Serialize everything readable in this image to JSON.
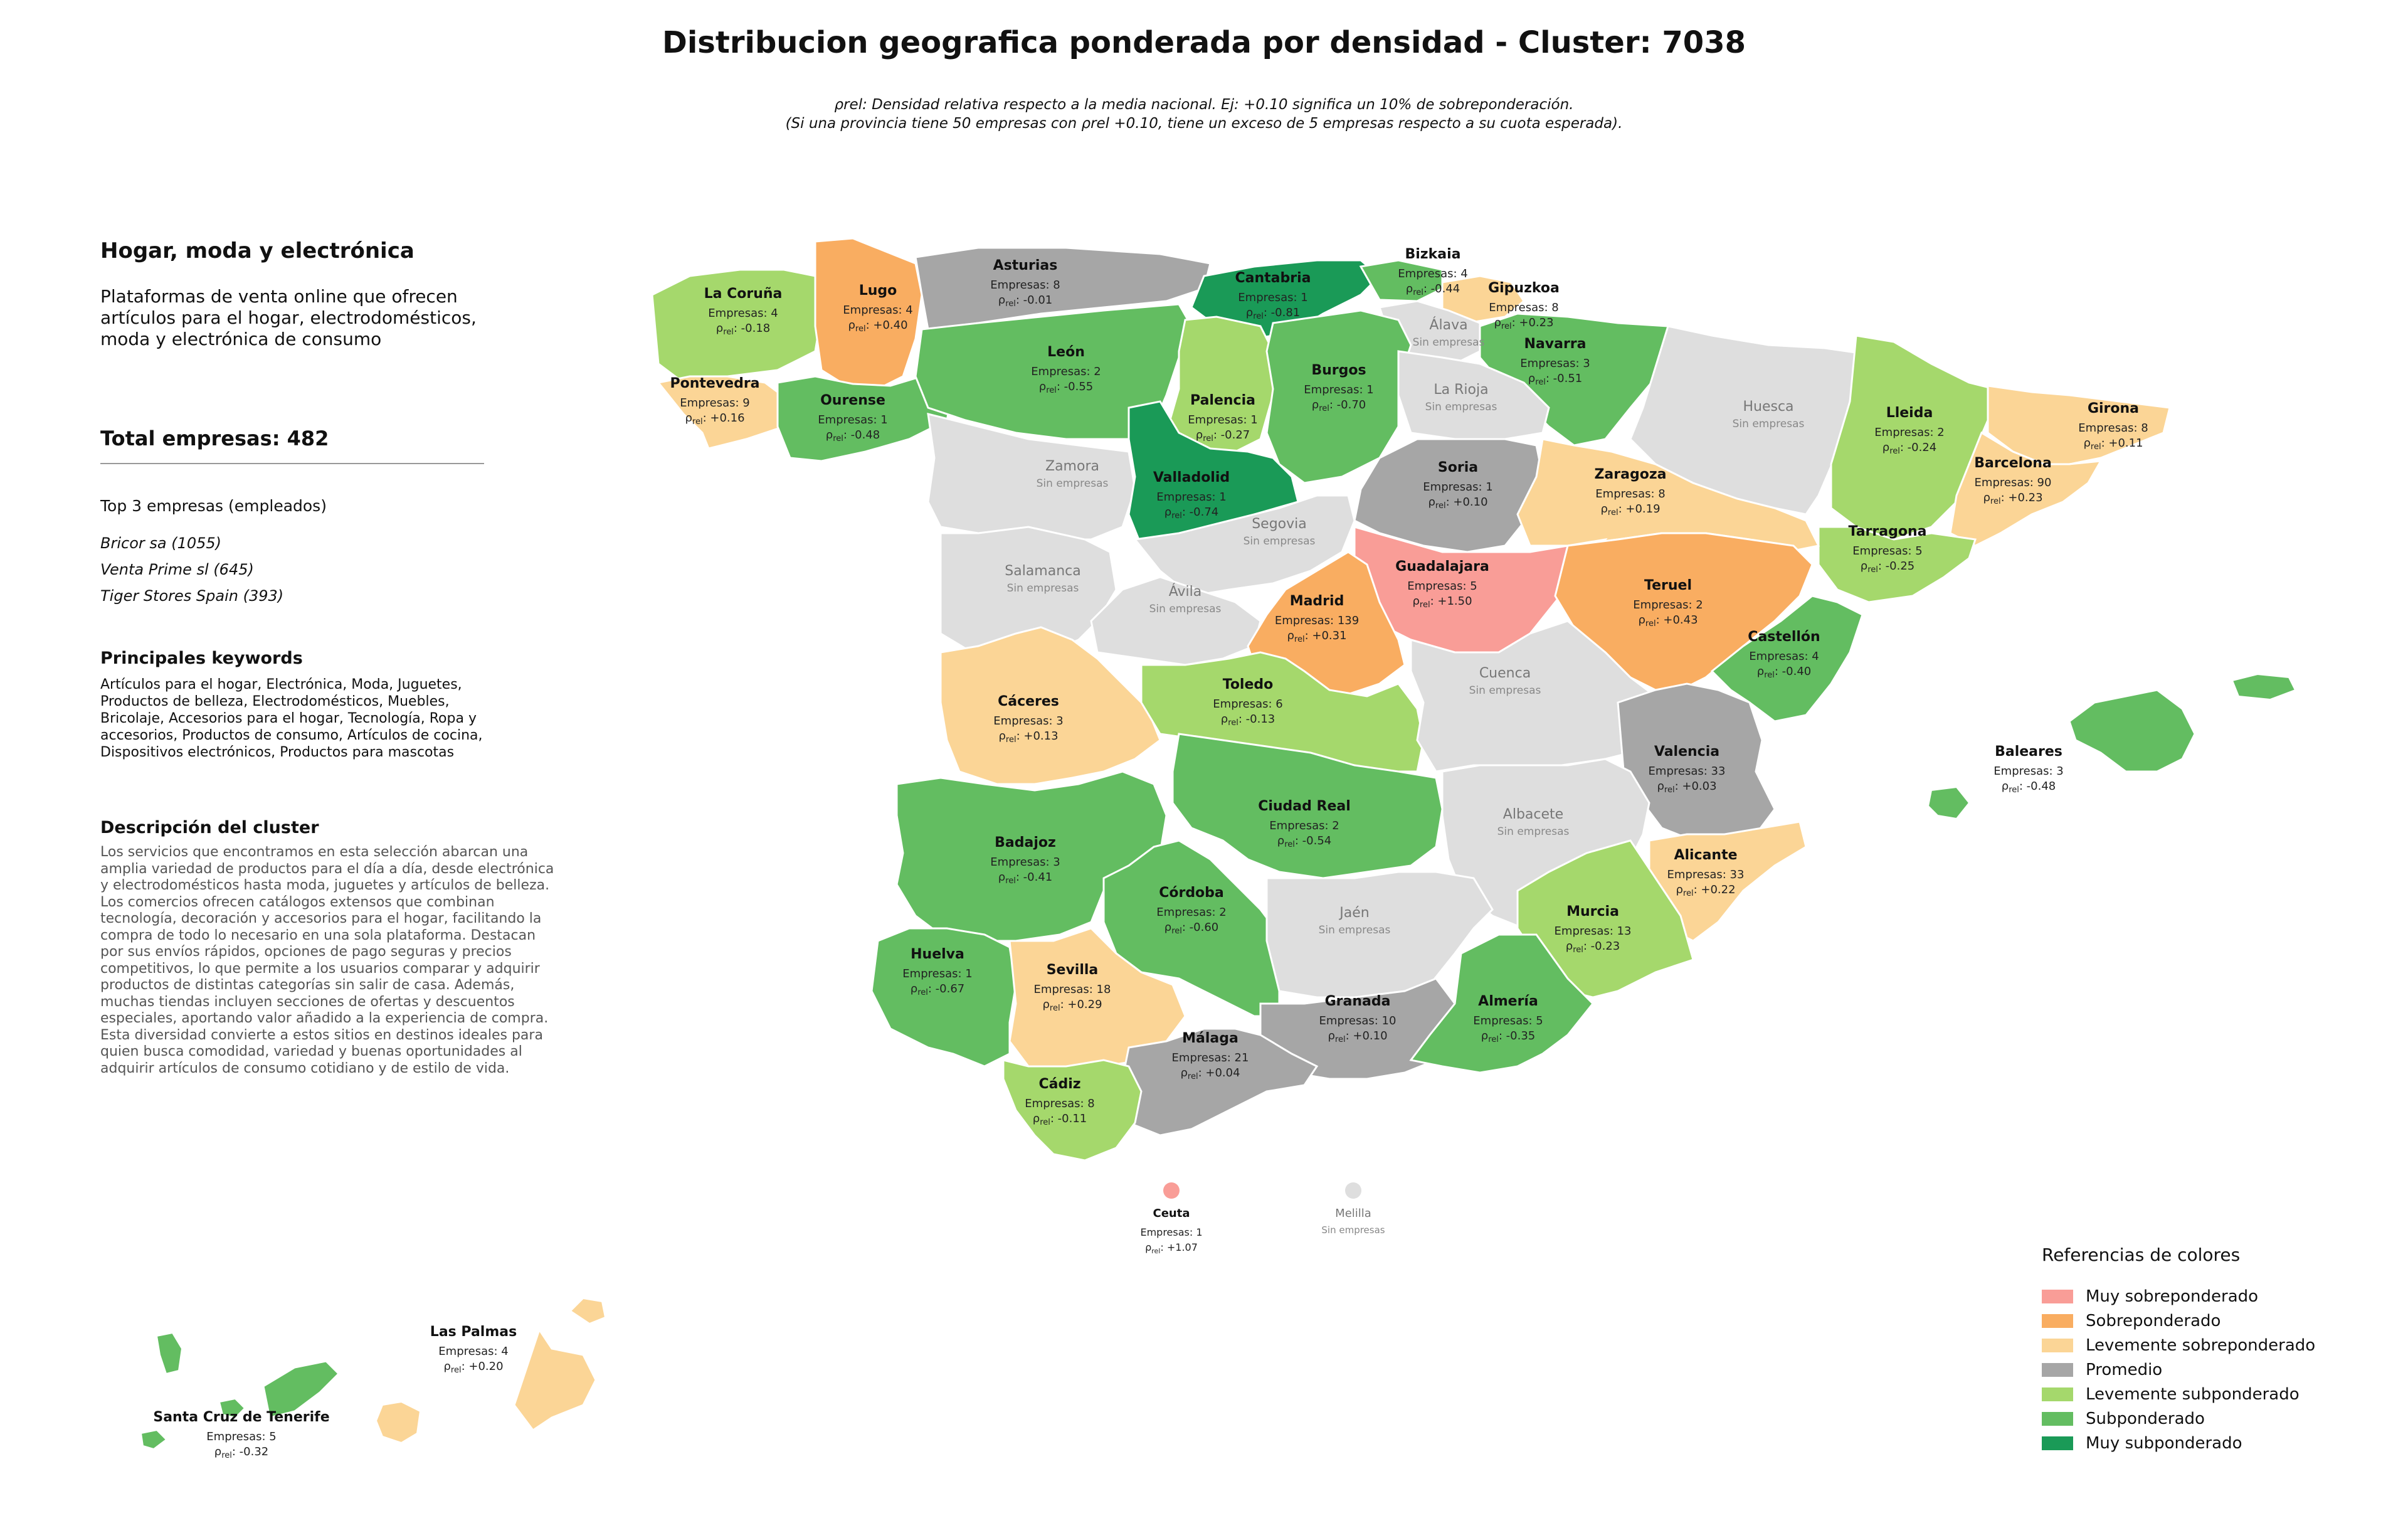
{
  "title": "Distribucion geografica ponderada por densidad - Cluster: 7038",
  "subtitle_line1": "ρrel: Densidad relativa respecto a la media nacional. Ej: +0.10 significa un 10% de sobreponderación.",
  "subtitle_line2": "(Si una provincia tiene 50 empresas con ρrel +0.10, tiene un exceso de 5 empresas respecto a su cuota esperada).",
  "sidebar": {
    "cluster_name": "Hogar, moda y electrónica",
    "cluster_summary": "Plataformas de venta online que ofrecen artículos para el hogar, electrodomésticos, moda y electrónica de consumo",
    "total": "Total empresas: 482",
    "top3_heading": "Top 3 empresas (empleados)",
    "top3": [
      "Bricor sa (1055)",
      "Venta Prime sl (645)",
      "Tiger Stores Spain (393)"
    ],
    "keywords_heading": "Principales keywords",
    "keywords": "Artículos para el hogar, Electrónica, Moda, Juguetes, Productos de belleza, Electrodomésticos, Muebles, Bricolaje, Accesorios para el hogar, Tecnología, Ropa y accesorios, Productos de consumo, Artículos de cocina, Dispositivos electrónicos, Productos para mascotas",
    "description_heading": "Descripción del cluster",
    "description": "Los servicios que encontramos en esta selección abarcan una amplia variedad de productos para el día a día, desde electrónica y electrodomésticos hasta moda, juguetes y artículos de belleza. Los comercios ofrecen catálogos extensos que combinan tecnología, decoración y accesorios para el hogar, facilitando la compra de todo lo necesario en una sola plataforma. Destacan por sus envíos rápidos, opciones de pago seguras y precios competitivos, lo que permite a los usuarios comparar y adquirir productos de distintas categorías sin salir de casa. Además, muchas tiendas incluyen secciones de ofertas y descuentos especiales, aportando valor añadido a la experiencia de compra. Esta diversidad convierte a estos sitios en destinos ideales para quien busca comodidad, variedad y buenas oportunidades al adquirir artículos de consumo cotidiano y de estilo de vida."
  },
  "map_labels": {
    "empresas_prefix": "Empresas: ",
    "rho_symbol": "ρ",
    "rho_sub": "rel",
    "no_companies": "Sin empresas"
  },
  "colors": {
    "muy_sobre": "#f99d97",
    "sobre": "#f9ad61",
    "lev_sobre": "#fbd596",
    "promedio": "#a6a6a6",
    "lev_sub": "#a5d86c",
    "sub": "#63bd61",
    "muy_sub": "#1a9a57",
    "sin": "#dedede"
  },
  "legend": {
    "title": "Referencias de colores",
    "items": [
      {
        "label": "Muy sobreponderado",
        "color": "#f99d97"
      },
      {
        "label": "Sobreponderado",
        "color": "#f9ad61"
      },
      {
        "label": "Levemente sobreponderado",
        "color": "#fbd596"
      },
      {
        "label": "Promedio",
        "color": "#a6a6a6"
      },
      {
        "label": "Levemente subponderado",
        "color": "#a5d86c"
      },
      {
        "label": "Subponderado",
        "color": "#63bd61"
      },
      {
        "label": "Muy subponderado",
        "color": "#1a9a57"
      }
    ]
  },
  "provinces": [
    {
      "name": "La Coruña",
      "companies": 4,
      "rho": "-0.18",
      "cat": "lev_sub"
    },
    {
      "name": "Lugo",
      "companies": 4,
      "rho": "+0.40",
      "cat": "sobre"
    },
    {
      "name": "Asturias",
      "companies": 8,
      "rho": "-0.01",
      "cat": "promedio"
    },
    {
      "name": "Cantabria",
      "companies": 1,
      "rho": "-0.81",
      "cat": "muy_sub"
    },
    {
      "name": "Bizkaia",
      "companies": 4,
      "rho": "-0.44",
      "cat": "sub"
    },
    {
      "name": "Gipuzkoa",
      "companies": 8,
      "rho": "+0.23",
      "cat": "lev_sobre"
    },
    {
      "name": "Álava",
      "companies": null,
      "rho": null,
      "cat": "sin"
    },
    {
      "name": "Navarra",
      "companies": 3,
      "rho": "-0.51",
      "cat": "sub"
    },
    {
      "name": "Pontevedra",
      "companies": 9,
      "rho": "+0.16",
      "cat": "lev_sobre"
    },
    {
      "name": "Ourense",
      "companies": 1,
      "rho": "-0.48",
      "cat": "sub"
    },
    {
      "name": "León",
      "companies": 2,
      "rho": "-0.55",
      "cat": "sub"
    },
    {
      "name": "Palencia",
      "companies": 1,
      "rho": "-0.27",
      "cat": "lev_sub"
    },
    {
      "name": "Burgos",
      "companies": 1,
      "rho": "-0.70",
      "cat": "sub"
    },
    {
      "name": "La Rioja",
      "companies": null,
      "rho": null,
      "cat": "sin"
    },
    {
      "name": "Huesca",
      "companies": null,
      "rho": null,
      "cat": "sin"
    },
    {
      "name": "Lleida",
      "companies": 2,
      "rho": "-0.24",
      "cat": "lev_sub"
    },
    {
      "name": "Girona",
      "companies": 8,
      "rho": "+0.11",
      "cat": "lev_sobre"
    },
    {
      "name": "Barcelona",
      "companies": 90,
      "rho": "+0.23",
      "cat": "lev_sobre"
    },
    {
      "name": "Tarragona",
      "companies": 5,
      "rho": "-0.25",
      "cat": "lev_sub"
    },
    {
      "name": "Zamora",
      "companies": null,
      "rho": null,
      "cat": "sin"
    },
    {
      "name": "Valladolid",
      "companies": 1,
      "rho": "-0.74",
      "cat": "muy_sub"
    },
    {
      "name": "Soria",
      "companies": 1,
      "rho": "+0.10",
      "cat": "promedio"
    },
    {
      "name": "Zaragoza",
      "companies": 8,
      "rho": "+0.19",
      "cat": "lev_sobre"
    },
    {
      "name": "Salamanca",
      "companies": null,
      "rho": null,
      "cat": "sin"
    },
    {
      "name": "Segovia",
      "companies": null,
      "rho": null,
      "cat": "sin"
    },
    {
      "name": "Ávila",
      "companies": null,
      "rho": null,
      "cat": "sin"
    },
    {
      "name": "Guadalajara",
      "companies": 5,
      "rho": "+1.50",
      "cat": "muy_sobre"
    },
    {
      "name": "Madrid",
      "companies": 139,
      "rho": "+0.31",
      "cat": "sobre"
    },
    {
      "name": "Teruel",
      "companies": 2,
      "rho": "+0.43",
      "cat": "sobre"
    },
    {
      "name": "Castellón",
      "companies": 4,
      "rho": "-0.40",
      "cat": "sub"
    },
    {
      "name": "Cáceres",
      "companies": 3,
      "rho": "+0.13",
      "cat": "lev_sobre"
    },
    {
      "name": "Toledo",
      "companies": 6,
      "rho": "-0.13",
      "cat": "lev_sub"
    },
    {
      "name": "Cuenca",
      "companies": null,
      "rho": null,
      "cat": "sin"
    },
    {
      "name": "Valencia",
      "companies": 33,
      "rho": "+0.03",
      "cat": "promedio"
    },
    {
      "name": "Baleares",
      "companies": 3,
      "rho": "-0.48",
      "cat": "sub"
    },
    {
      "name": "Badajoz",
      "companies": 3,
      "rho": "-0.41",
      "cat": "sub"
    },
    {
      "name": "Ciudad Real",
      "companies": 2,
      "rho": "-0.54",
      "cat": "sub"
    },
    {
      "name": "Albacete",
      "companies": null,
      "rho": null,
      "cat": "sin"
    },
    {
      "name": "Alicante",
      "companies": 33,
      "rho": "+0.22",
      "cat": "lev_sobre"
    },
    {
      "name": "Córdoba",
      "companies": 2,
      "rho": "-0.60",
      "cat": "sub"
    },
    {
      "name": "Jaén",
      "companies": null,
      "rho": null,
      "cat": "sin"
    },
    {
      "name": "Murcia",
      "companies": 13,
      "rho": "-0.23",
      "cat": "lev_sub"
    },
    {
      "name": "Huelva",
      "companies": 1,
      "rho": "-0.67",
      "cat": "sub"
    },
    {
      "name": "Sevilla",
      "companies": 18,
      "rho": "+0.29",
      "cat": "lev_sobre"
    },
    {
      "name": "Granada",
      "companies": 10,
      "rho": "+0.10",
      "cat": "promedio"
    },
    {
      "name": "Almería",
      "companies": 5,
      "rho": "-0.35",
      "cat": "sub"
    },
    {
      "name": "Málaga",
      "companies": 21,
      "rho": "+0.04",
      "cat": "promedio"
    },
    {
      "name": "Cádiz",
      "companies": 8,
      "rho": "-0.11",
      "cat": "lev_sub"
    },
    {
      "name": "Ceuta",
      "companies": 1,
      "rho": "+1.07",
      "cat": "muy_sobre"
    },
    {
      "name": "Melilla",
      "companies": null,
      "rho": null,
      "cat": "sin"
    },
    {
      "name": "Las Palmas",
      "companies": 4,
      "rho": "+0.20",
      "cat": "lev_sobre"
    },
    {
      "name": "Santa Cruz de Tenerife",
      "companies": 5,
      "rho": "-0.32",
      "cat": "sub"
    }
  ]
}
